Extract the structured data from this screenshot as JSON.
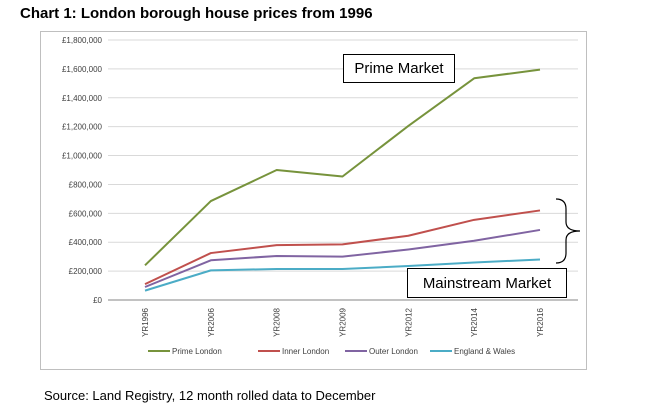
{
  "title": "Chart 1: London borough house prices from 1996",
  "source": "Source: Land Registry, 12 month rolled data to December",
  "annotations": {
    "prime": "Prime Market",
    "mainstream": "Mainstream Market"
  },
  "chart_data": {
    "type": "line",
    "categories": [
      "YR1996",
      "YR2006",
      "YR2008",
      "YR2009",
      "YR2012",
      "YR2014",
      "YR2016"
    ],
    "ylim": [
      0,
      1800000
    ],
    "yticks": [
      {
        "value": 0,
        "label": "£0"
      },
      {
        "value": 200000,
        "label": "£200,000"
      },
      {
        "value": 400000,
        "label": "£400,000"
      },
      {
        "value": 600000,
        "label": "£600,000"
      },
      {
        "value": 800000,
        "label": "£800,000"
      },
      {
        "value": 1000000,
        "label": "£1,000,000"
      },
      {
        "value": 1200000,
        "label": "£1,200,000"
      },
      {
        "value": 1400000,
        "label": "£1,400,000"
      },
      {
        "value": 1600000,
        "label": "£1,600,000"
      },
      {
        "value": 1800000,
        "label": "£1,800,000"
      }
    ],
    "grid": true,
    "legend_position": "bottom",
    "series": [
      {
        "name": "Prime London",
        "color": "#77933c",
        "values": [
          240000,
          685000,
          900000,
          855000,
          1205000,
          1535000,
          1595000
        ]
      },
      {
        "name": "Inner London",
        "color": "#c0504d",
        "values": [
          110000,
          325000,
          380000,
          385000,
          445000,
          555000,
          620000
        ]
      },
      {
        "name": "Outer London",
        "color": "#8064a2",
        "values": [
          90000,
          275000,
          305000,
          300000,
          350000,
          410000,
          485000
        ]
      },
      {
        "name": "England & Wales",
        "color": "#4bacc6",
        "values": [
          65000,
          205000,
          215000,
          215000,
          235000,
          260000,
          280000
        ]
      }
    ]
  }
}
